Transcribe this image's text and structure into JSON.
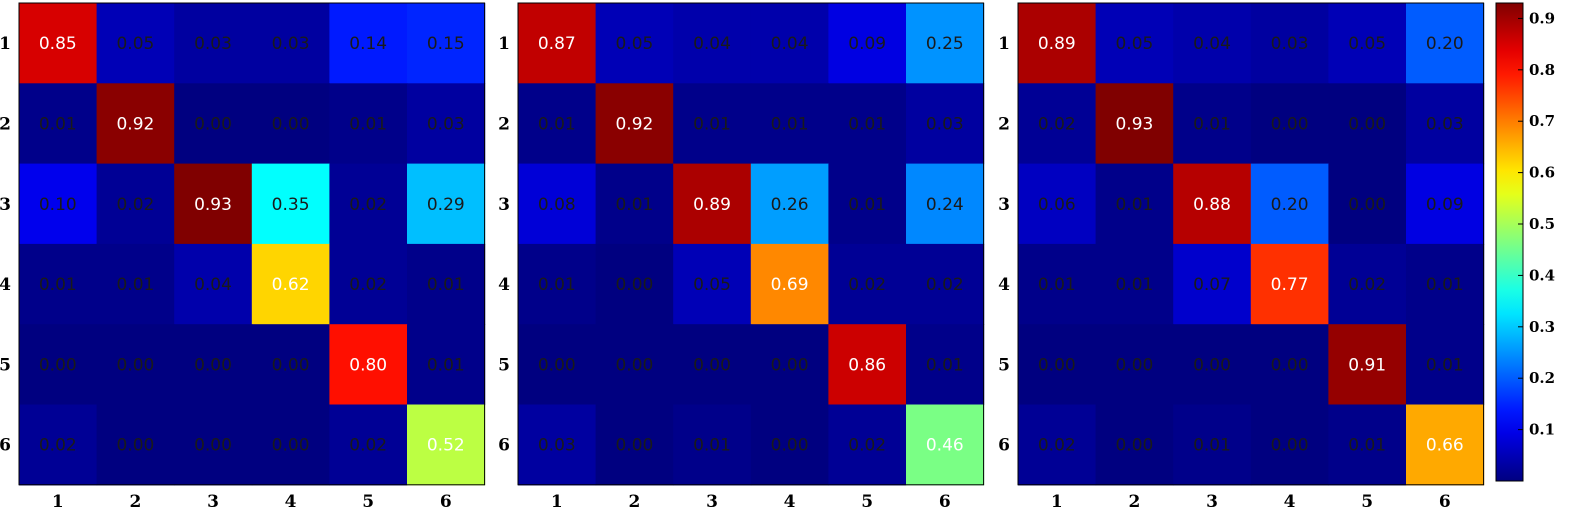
{
  "chart_data": [
    {
      "type": "heatmap",
      "x_ticks": [
        "1",
        "2",
        "3",
        "4",
        "5",
        "6"
      ],
      "y_ticks": [
        "1",
        "2",
        "3",
        "4",
        "5",
        "6"
      ],
      "values": [
        [
          0.85,
          0.05,
          0.03,
          0.03,
          0.14,
          0.15
        ],
        [
          0.01,
          0.92,
          0.0,
          0.0,
          0.01,
          0.03
        ],
        [
          0.1,
          0.02,
          0.93,
          0.35,
          0.02,
          0.29
        ],
        [
          0.01,
          0.01,
          0.04,
          0.62,
          0.02,
          0.01
        ],
        [
          0.0,
          0.0,
          0.0,
          0.0,
          0.8,
          0.01
        ],
        [
          0.02,
          0.0,
          0.0,
          0.0,
          0.02,
          0.52
        ]
      ],
      "labels": [
        [
          "0.85",
          "0.05",
          "0.03",
          "0.03",
          "0.14",
          "0.15"
        ],
        [
          "0.01",
          "0.92",
          "0.00",
          "0.00",
          "0.01",
          "0.03"
        ],
        [
          "0.10",
          "0.02",
          "0.93",
          "0.35",
          "0.02",
          "0.29"
        ],
        [
          "0.01",
          "0.01",
          "0.04",
          "0.62",
          "0.02",
          "0.01"
        ],
        [
          "0.00",
          "0.00",
          "0.00",
          "0.00",
          "0.80",
          "0.01"
        ],
        [
          "0.02",
          "0.00",
          "0.00",
          "0.00",
          "0.02",
          "0.52"
        ]
      ]
    },
    {
      "type": "heatmap",
      "x_ticks": [
        "1",
        "2",
        "3",
        "4",
        "5",
        "6"
      ],
      "y_ticks": [
        "1",
        "2",
        "3",
        "4",
        "5",
        "6"
      ],
      "values": [
        [
          0.87,
          0.05,
          0.04,
          0.04,
          0.09,
          0.25
        ],
        [
          0.01,
          0.92,
          0.01,
          0.01,
          0.01,
          0.03
        ],
        [
          0.08,
          0.01,
          0.89,
          0.26,
          0.01,
          0.24
        ],
        [
          0.01,
          0.0,
          0.05,
          0.69,
          0.02,
          0.02
        ],
        [
          0.0,
          0.0,
          0.0,
          0.0,
          0.86,
          0.01
        ],
        [
          0.03,
          0.0,
          0.01,
          0.0,
          0.02,
          0.46
        ]
      ],
      "labels": [
        [
          "0.87",
          "0.05",
          "0.04",
          "0.04",
          "0.09",
          "0.25"
        ],
        [
          "0.01",
          "0.92",
          "0.01",
          "0.01",
          "0.01",
          "0.03"
        ],
        [
          "0.08",
          "0.01",
          "0.89",
          "0.26",
          "0.01",
          "0.24"
        ],
        [
          "0.01",
          "0.00",
          "0.05",
          "0.69",
          "0.02",
          "0.02"
        ],
        [
          "0.00",
          "0.00",
          "0.00",
          "0.00",
          "0.86",
          "0.01"
        ],
        [
          "0.03",
          "0.00",
          "0.01",
          "0.00",
          "0.02",
          "0.46"
        ]
      ]
    },
    {
      "type": "heatmap",
      "x_ticks": [
        "1",
        "2",
        "3",
        "4",
        "5",
        "6"
      ],
      "y_ticks": [
        "1",
        "2",
        "3",
        "4",
        "5",
        "6"
      ],
      "values": [
        [
          0.89,
          0.05,
          0.04,
          0.03,
          0.05,
          0.2
        ],
        [
          0.02,
          0.93,
          0.01,
          0.0,
          0.0,
          0.03
        ],
        [
          0.06,
          0.01,
          0.88,
          0.2,
          0.0,
          0.09
        ],
        [
          0.01,
          0.01,
          0.07,
          0.77,
          0.02,
          0.01
        ],
        [
          0.0,
          0.0,
          0.0,
          0.0,
          0.91,
          0.01
        ],
        [
          0.02,
          0.0,
          0.01,
          0.0,
          0.01,
          0.66
        ]
      ],
      "labels": [
        [
          "0.89",
          "0.05",
          "0.04",
          "0.03",
          "0.05",
          "0.20"
        ],
        [
          "0.02",
          "0.93",
          "0.01",
          "0.00",
          "0.00",
          "0.03"
        ],
        [
          "0.06",
          "0.01",
          "0.88",
          "0.20",
          "0.00",
          "0.09"
        ],
        [
          "0.01",
          "0.01",
          "0.07",
          "0.77",
          "0.02",
          "0.01"
        ],
        [
          "0.00",
          "0.00",
          "0.00",
          "0.00",
          "0.91",
          "0.01"
        ],
        [
          "0.02",
          "0.00",
          "0.01",
          "0.00",
          "0.01",
          "0.66"
        ]
      ]
    }
  ],
  "colorbar": {
    "colormap": "jet",
    "range": [
      0,
      0.93
    ],
    "ticks": [
      0.1,
      0.2,
      0.3,
      0.4,
      0.5,
      0.6,
      0.7,
      0.8,
      0.9
    ],
    "tick_labels": [
      "0.1",
      "0.2",
      "0.3",
      "0.4",
      "0.5",
      "0.6",
      "0.7",
      "0.8",
      "0.9"
    ]
  },
  "colors": {
    "text_dark": "#1a1a1a",
    "text_light": "#ffffff",
    "axis": "#000000"
  }
}
